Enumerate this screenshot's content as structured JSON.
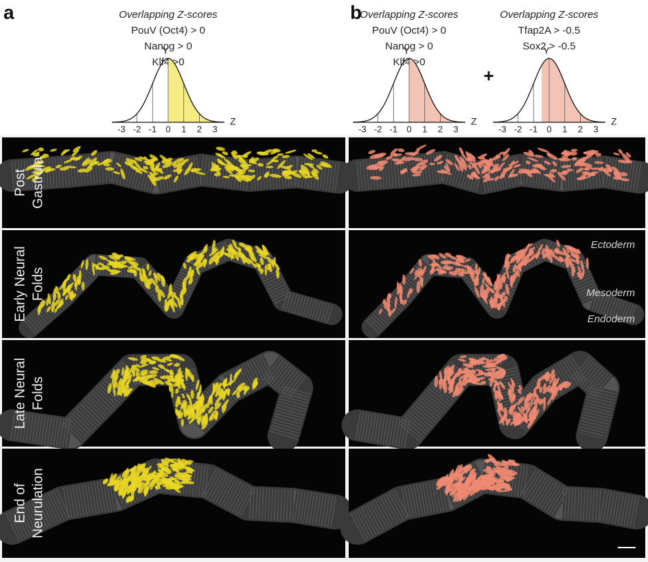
{
  "figure": {
    "panels": [
      {
        "letter": "a",
        "highlight_color": "#f6ec86",
        "cell_color": "#e9d624",
        "distributions": [
          {
            "title": "Overlapping Z-scores",
            "conditions": [
              "PouV (Oct4) > 0",
              "Nanog > 0",
              "Klf4 >0"
            ],
            "y_label": "Y",
            "x_label": "Z",
            "ticks": [
              -3,
              -2,
              -1,
              0,
              1,
              2,
              3
            ]
          }
        ]
      },
      {
        "letter": "b",
        "highlight_color": "#f3c4b5",
        "cell_color": "#f08a72",
        "operator": "+",
        "distributions": [
          {
            "title": "Overlapping Z-scores",
            "conditions": [
              "PouV (Oct4) > 0",
              "Nanog > 0",
              "Klf4 >0"
            ],
            "y_label": "Y",
            "x_label": "Z",
            "ticks": [
              -3,
              -2,
              -1,
              0,
              1,
              2,
              3
            ]
          },
          {
            "title": "Overlapping Z-scores",
            "conditions": [
              "Tfap2A > -0.5",
              "Sox2 > -0.5"
            ],
            "y_label": "Y",
            "x_label": "Z",
            "ticks": [
              -3,
              -2,
              -1,
              0,
              1,
              2,
              3
            ]
          }
        ]
      }
    ],
    "rows": [
      {
        "label": [
          "Post",
          "Gastrula"
        ]
      },
      {
        "label": [
          "Early Neural",
          "Folds"
        ]
      },
      {
        "label": [
          "Late Neural",
          "Folds"
        ]
      },
      {
        "label": [
          "End of",
          "Neurulation"
        ]
      }
    ],
    "annotations": [
      "Ectoderm",
      "Mesoderm",
      "Endoderm"
    ]
  }
}
